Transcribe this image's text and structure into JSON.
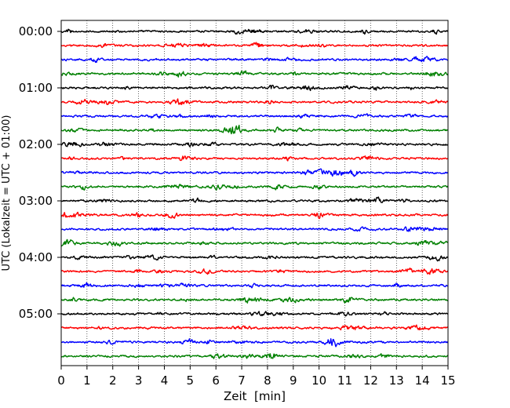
{
  "chart_data": {
    "type": "line",
    "title": "",
    "xlabel": "Zeit  [min]",
    "ylabel": "UTC (Lokalzeit = UTC + 01:00)",
    "xlim": [
      0,
      15
    ],
    "x_ticks": [
      "0",
      "1",
      "2",
      "3",
      "4",
      "5",
      "6",
      "7",
      "8",
      "9",
      "10",
      "11",
      "12",
      "13",
      "14",
      "15"
    ],
    "y_tick_labels": [
      "00:00",
      "01:00",
      "02:00",
      "03:00",
      "04:00",
      "05:00"
    ],
    "trace_interval_min": 15,
    "trace_count": 24,
    "trace_colors": [
      "#000000",
      "#ff0000",
      "#0000ff",
      "#008000"
    ],
    "grid": "vertical dotted lines at each minute",
    "legend": "none"
  }
}
